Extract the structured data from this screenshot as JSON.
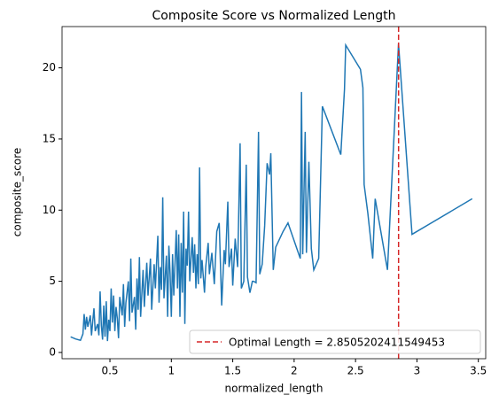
{
  "chart_data": {
    "type": "line",
    "title": "Composite Score vs Normalized Length",
    "x_label": "normalized_length",
    "y_label": "composite_score",
    "x": [
      0.18,
      0.22,
      0.26,
      0.28,
      0.29,
      0.3,
      0.31,
      0.32,
      0.34,
      0.35,
      0.36,
      0.37,
      0.38,
      0.4,
      0.41,
      0.42,
      0.43,
      0.44,
      0.45,
      0.46,
      0.47,
      0.48,
      0.49,
      0.5,
      0.51,
      0.52,
      0.53,
      0.54,
      0.55,
      0.56,
      0.57,
      0.58,
      0.6,
      0.61,
      0.62,
      0.63,
      0.65,
      0.66,
      0.67,
      0.68,
      0.7,
      0.71,
      0.72,
      0.73,
      0.74,
      0.75,
      0.77,
      0.78,
      0.8,
      0.81,
      0.83,
      0.84,
      0.86,
      0.87,
      0.89,
      0.9,
      0.91,
      0.92,
      0.93,
      0.94,
      0.96,
      0.97,
      0.98,
      0.99,
      1.0,
      1.01,
      1.02,
      1.04,
      1.05,
      1.06,
      1.07,
      1.08,
      1.09,
      1.1,
      1.11,
      1.12,
      1.13,
      1.14,
      1.15,
      1.17,
      1.18,
      1.19,
      1.2,
      1.21,
      1.22,
      1.23,
      1.24,
      1.25,
      1.27,
      1.28,
      1.3,
      1.31,
      1.33,
      1.35,
      1.37,
      1.39,
      1.41,
      1.43,
      1.44,
      1.46,
      1.47,
      1.49,
      1.5,
      1.52,
      1.54,
      1.56,
      1.57,
      1.59,
      1.61,
      1.62,
      1.64,
      1.66,
      1.67,
      1.69,
      1.71,
      1.72,
      1.74,
      1.76,
      1.78,
      1.8,
      1.81,
      1.83,
      1.85,
      1.91,
      1.95,
      2.05,
      2.06,
      2.07,
      2.09,
      2.1,
      2.12,
      2.14,
      2.16,
      2.2,
      2.23,
      2.38,
      2.41,
      2.42,
      2.54,
      2.56,
      2.57,
      2.6,
      2.64,
      2.66,
      2.76,
      2.85,
      2.96,
      3.45
    ],
    "series": [
      {
        "name": "composite_score",
        "color": "#1f77b4",
        "values": [
          1.1,
          0.95,
          0.85,
          1.3,
          2.7,
          1.6,
          2.5,
          1.8,
          2.6,
          1.2,
          2.2,
          3.1,
          1.5,
          2.0,
          1.2,
          4.3,
          1.9,
          0.9,
          3.3,
          1.1,
          3.6,
          0.8,
          2.3,
          1.5,
          4.5,
          2.1,
          4.0,
          1.5,
          3.2,
          2.4,
          1.0,
          3.9,
          2.6,
          4.8,
          1.8,
          3.5,
          5.0,
          2.2,
          6.6,
          2.8,
          3.9,
          1.6,
          5.2,
          3.0,
          6.7,
          2.5,
          5.8,
          3.2,
          6.3,
          4.0,
          6.6,
          3.0,
          6.2,
          4.5,
          8.2,
          3.5,
          6.0,
          4.4,
          10.9,
          3.8,
          6.8,
          2.5,
          7.5,
          5.5,
          2.5,
          6.9,
          4.0,
          8.6,
          4.5,
          8.3,
          2.5,
          7.7,
          4.2,
          9.9,
          2.0,
          7.3,
          6.1,
          9.9,
          5.0,
          8.1,
          5.6,
          7.6,
          4.5,
          6.9,
          4.8,
          13.0,
          5.2,
          6.5,
          4.2,
          6.0,
          7.7,
          5.5,
          7.0,
          4.8,
          8.5,
          9.1,
          3.3,
          7.2,
          6.2,
          10.6,
          6.0,
          7.3,
          4.7,
          8.0,
          6.0,
          14.7,
          4.5,
          5.0,
          13.2,
          5.3,
          4.2,
          5.0,
          5.0,
          4.9,
          15.5,
          5.5,
          6.2,
          8.9,
          13.3,
          12.5,
          14.0,
          5.8,
          7.4,
          8.5,
          9.1,
          6.6,
          18.3,
          6.9,
          15.5,
          7.0,
          13.4,
          7.3,
          5.8,
          6.6,
          17.3,
          13.9,
          18.5,
          21.6,
          19.9,
          18.6,
          11.8,
          9.8,
          6.6,
          10.8,
          5.8,
          21.7,
          8.3,
          10.8
        ]
      }
    ],
    "vline": {
      "x": 2.8505202411549453,
      "color": "#d62728",
      "label": "Optimal Length = 2.8505202411549453"
    },
    "xlim": [
      0.11,
      3.56
    ],
    "xticks": [
      0.5,
      1.0,
      1.5,
      2.0,
      2.5,
      3.0,
      3.5
    ],
    "ylim": [
      -0.44,
      22.9
    ],
    "yticks": [
      0,
      5,
      10,
      15,
      20
    ],
    "legend": "lower right"
  }
}
